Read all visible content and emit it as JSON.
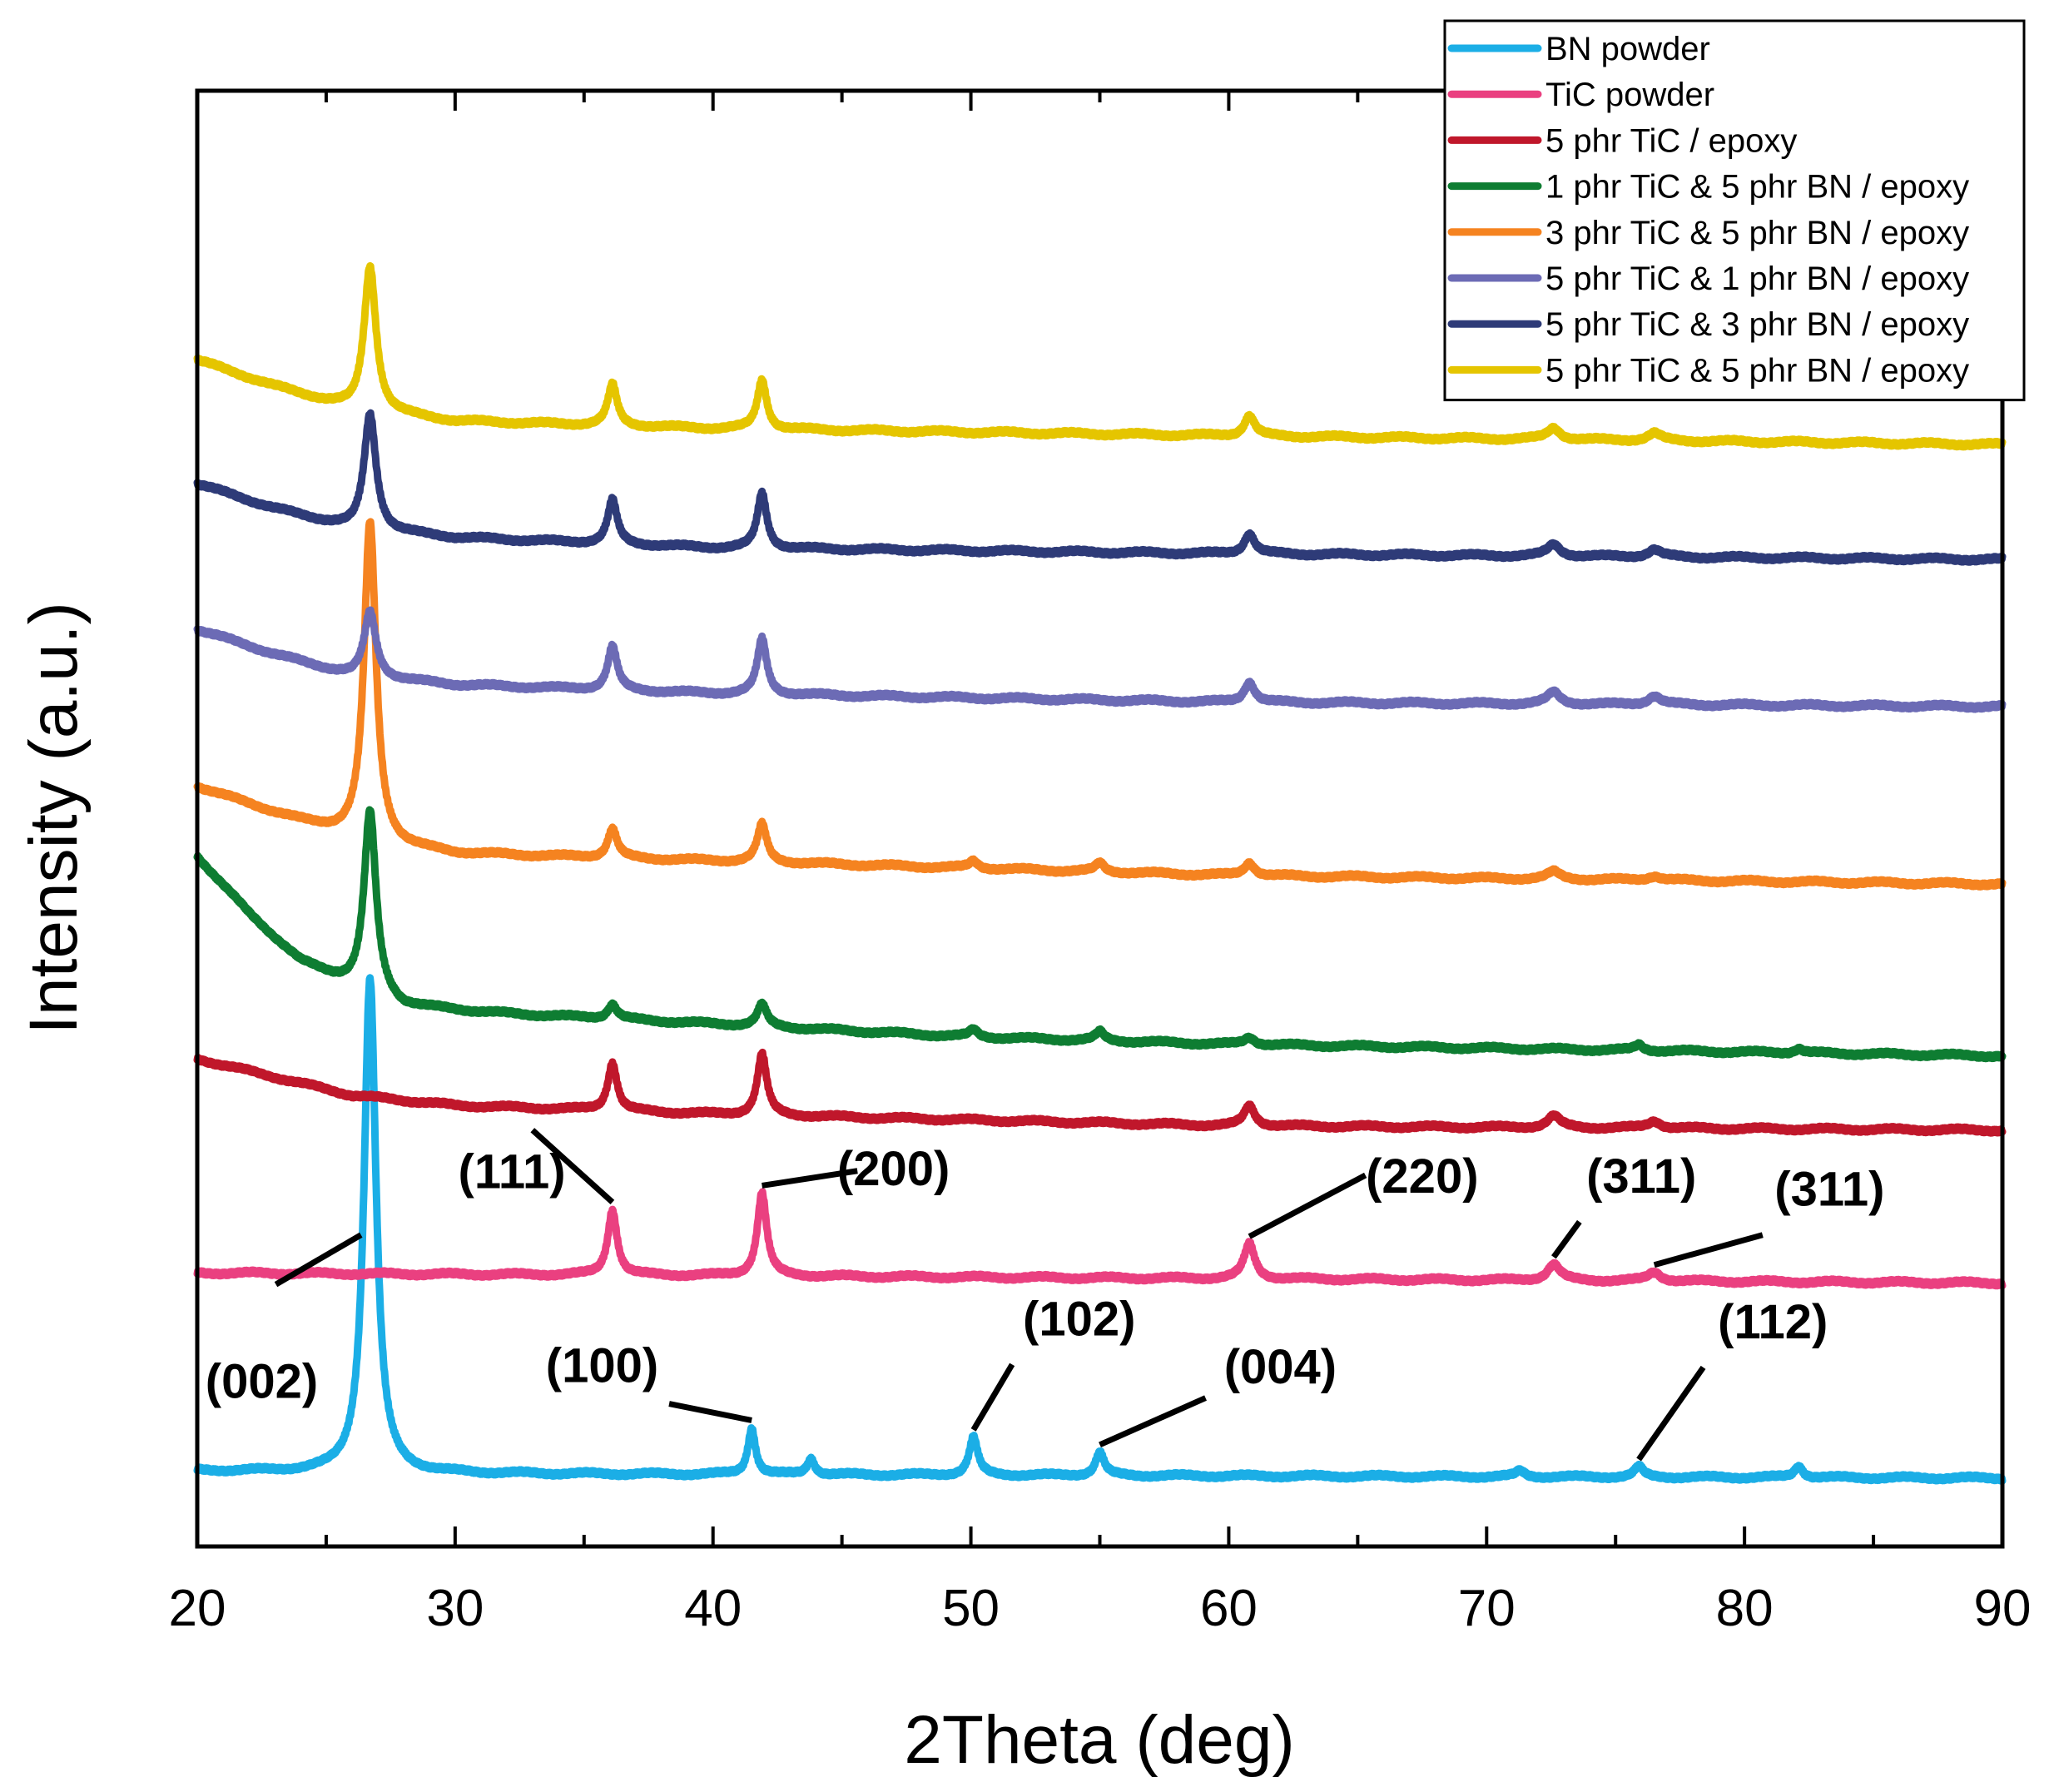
{
  "chart_data": {
    "type": "line",
    "title": "",
    "xlabel": "2Theta (deg)",
    "ylabel": "Intensity (a.u.)",
    "xlim": [
      20,
      90
    ],
    "ylim": [
      0,
      10
    ],
    "xticks": [
      20,
      30,
      40,
      50,
      60,
      70,
      80,
      90
    ],
    "xtick_labels": [
      "20",
      "30",
      "40",
      "50",
      "60",
      "70",
      "80",
      "90"
    ],
    "y_ticks_shown": false,
    "grid": false,
    "legend_position": "top-right",
    "series": [
      {
        "name": "BN powder",
        "color": "#1BAEE6",
        "baseline": [
          [
            20,
            0.52
          ],
          [
            30,
            0.5
          ],
          [
            50,
            0.49
          ],
          [
            90,
            0.47
          ]
        ],
        "peaks": [
          [
            26.7,
            3.4,
            0.28
          ],
          [
            41.5,
            0.32,
            0.18
          ],
          [
            43.8,
            0.11,
            0.18
          ],
          [
            50.1,
            0.26,
            0.2
          ],
          [
            55.0,
            0.16,
            0.2
          ],
          [
            71.3,
            0.04,
            0.2
          ],
          [
            75.9,
            0.07,
            0.2
          ],
          [
            82.1,
            0.08,
            0.2
          ]
        ]
      },
      {
        "name": "TiC powder",
        "color": "#EA4080",
        "baseline": [
          [
            20,
            1.88
          ],
          [
            40,
            1.86
          ],
          [
            90,
            1.81
          ]
        ],
        "peaks": [
          [
            36.1,
            0.45,
            0.22
          ],
          [
            41.9,
            0.57,
            0.22
          ],
          [
            60.8,
            0.24,
            0.25
          ],
          [
            72.6,
            0.11,
            0.3
          ],
          [
            76.5,
            0.06,
            0.3
          ]
        ]
      },
      {
        "name": "5 phr TiC / epoxy",
        "color": "#C0172B",
        "baseline": [
          [
            20,
            3.35
          ],
          [
            26,
            3.1
          ],
          [
            30,
            3.03
          ],
          [
            40,
            2.97
          ],
          [
            60,
            2.89
          ],
          [
            90,
            2.86
          ]
        ],
        "peaks": [
          [
            36.1,
            0.33,
            0.22
          ],
          [
            41.9,
            0.42,
            0.22
          ],
          [
            60.8,
            0.14,
            0.25
          ],
          [
            72.6,
            0.08,
            0.3
          ],
          [
            76.5,
            0.05,
            0.3
          ]
        ]
      },
      {
        "name": "1 phr TiC & 5 phr BN / epoxy",
        "color": "#0E7D32",
        "baseline": [
          [
            20,
            4.74
          ],
          [
            22,
            4.35
          ],
          [
            24,
            4.02
          ],
          [
            26,
            3.85
          ],
          [
            28,
            3.71
          ],
          [
            32,
            3.66
          ],
          [
            40,
            3.59
          ],
          [
            50,
            3.5
          ],
          [
            60,
            3.45
          ],
          [
            90,
            3.37
          ]
        ],
        "peaks": [
          [
            26.7,
            1.25,
            0.28
          ],
          [
            36.1,
            0.1,
            0.22
          ],
          [
            41.9,
            0.15,
            0.22
          ],
          [
            50.1,
            0.05,
            0.2
          ],
          [
            55.0,
            0.06,
            0.2
          ],
          [
            60.8,
            0.05,
            0.25
          ],
          [
            75.9,
            0.04,
            0.2
          ],
          [
            82.1,
            0.03,
            0.2
          ]
        ]
      },
      {
        "name": "3 phr TiC & 5 phr BN / epoxy",
        "color": "#F58320",
        "baseline": [
          [
            20,
            5.22
          ],
          [
            24,
            4.98
          ],
          [
            27,
            4.82
          ],
          [
            30,
            4.76
          ],
          [
            40,
            4.71
          ],
          [
            60,
            4.61
          ],
          [
            90,
            4.55
          ]
        ],
        "peaks": [
          [
            26.7,
            2.2,
            0.28
          ],
          [
            36.1,
            0.2,
            0.22
          ],
          [
            41.9,
            0.26,
            0.22
          ],
          [
            50.1,
            0.05,
            0.2
          ],
          [
            55.0,
            0.06,
            0.2
          ],
          [
            60.8,
            0.09,
            0.25
          ],
          [
            72.6,
            0.05,
            0.3
          ],
          [
            76.5,
            0.03,
            0.3
          ]
        ]
      },
      {
        "name": "5 phr TiC & 1 phr BN / epoxy",
        "color": "#6C6BB5",
        "baseline": [
          [
            20,
            6.3
          ],
          [
            23,
            6.13
          ],
          [
            26,
            5.98
          ],
          [
            30,
            5.92
          ],
          [
            40,
            5.86
          ],
          [
            60,
            5.8
          ],
          [
            90,
            5.77
          ]
        ],
        "peaks": [
          [
            26.7,
            0.45,
            0.28
          ],
          [
            36.1,
            0.3,
            0.22
          ],
          [
            41.9,
            0.38,
            0.22
          ],
          [
            60.8,
            0.14,
            0.25
          ],
          [
            72.6,
            0.08,
            0.3
          ],
          [
            76.5,
            0.06,
            0.3
          ]
        ]
      },
      {
        "name": "5 phr TiC & 3 phr BN / epoxy",
        "color": "#2E3B78",
        "baseline": [
          [
            20,
            7.3
          ],
          [
            23,
            7.13
          ],
          [
            26,
            6.99
          ],
          [
            30,
            6.93
          ],
          [
            40,
            6.86
          ],
          [
            60,
            6.82
          ],
          [
            90,
            6.78
          ]
        ],
        "peaks": [
          [
            26.7,
            0.8,
            0.28
          ],
          [
            36.1,
            0.3,
            0.22
          ],
          [
            41.9,
            0.38,
            0.22
          ],
          [
            60.8,
            0.14,
            0.25
          ],
          [
            72.6,
            0.08,
            0.3
          ],
          [
            76.5,
            0.05,
            0.3
          ]
        ]
      },
      {
        "name": "5 phr TiC & 5 phr BN / epoxy",
        "color": "#E5C500",
        "baseline": [
          [
            20,
            8.15
          ],
          [
            23,
            7.97
          ],
          [
            26,
            7.81
          ],
          [
            30,
            7.73
          ],
          [
            40,
            7.68
          ],
          [
            60,
            7.63
          ],
          [
            90,
            7.57
          ]
        ],
        "peaks": [
          [
            26.7,
            1.0,
            0.28
          ],
          [
            36.1,
            0.28,
            0.22
          ],
          [
            41.9,
            0.34,
            0.22
          ],
          [
            60.8,
            0.14,
            0.25
          ],
          [
            72.6,
            0.08,
            0.3
          ],
          [
            76.5,
            0.05,
            0.3
          ]
        ]
      }
    ],
    "annotations": [
      {
        "text": "(002)",
        "x": 26.7
      },
      {
        "text": "(111)",
        "x": 36.1
      },
      {
        "text": "(200)",
        "x": 41.9
      },
      {
        "text": "(220)",
        "x": 60.8
      },
      {
        "text": "(311)",
        "x": 72.6
      },
      {
        "text": "(311)",
        "x": 76.5
      },
      {
        "text": "(100)",
        "x": 41.5
      },
      {
        "text": "(102)",
        "x": 50.1
      },
      {
        "text": "(004)",
        "x": 55.0
      },
      {
        "text": "(112)",
        "x": 75.9
      }
    ]
  }
}
